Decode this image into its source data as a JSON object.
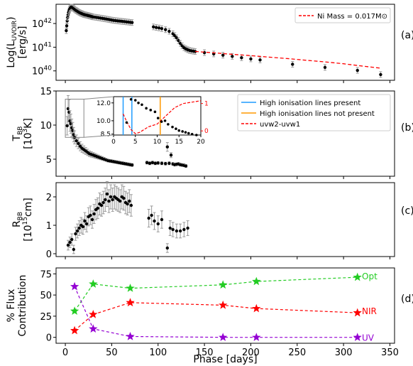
{
  "chart_data": [
    {
      "id": "a",
      "type": "scatter",
      "panel_label": "(a)",
      "ylabel": "Log(L_UVOIR) [erg/s]",
      "yscale": "log",
      "xlim": [
        -10,
        355
      ],
      "ylim": [
        4e+39,
        6.5e+42
      ],
      "yticks": [
        {
          "value": 1e+40,
          "label": "10^40"
        },
        {
          "value": 1e+41,
          "label": "10^41"
        },
        {
          "value": 1e+42,
          "label": "10^42"
        }
      ],
      "legend": {
        "position": "top-right",
        "entries": [
          {
            "label": "Ni Mass = 0.017M⊙",
            "style": "red-dashed"
          }
        ]
      },
      "series": [
        {
          "style": "black-points-errorbars",
          "x": [
            1,
            1.5,
            2,
            2.5,
            3,
            3.5,
            4,
            4.5,
            5,
            5.5,
            6,
            6.5,
            7,
            7.5,
            8,
            9,
            10,
            11,
            12,
            13,
            14,
            15,
            16,
            17,
            18,
            19,
            20,
            21,
            22,
            23,
            24,
            25,
            26,
            27,
            28,
            29,
            30,
            32,
            34,
            36,
            38,
            40,
            42,
            44,
            46,
            48,
            50,
            52,
            54,
            56,
            58,
            60,
            62,
            64,
            66,
            68,
            70,
            72,
            95,
            98,
            101,
            104,
            108,
            112,
            116,
            118,
            120,
            122,
            124,
            126,
            128,
            130,
            132,
            134,
            136,
            138,
            140,
            150,
            160,
            170,
            180,
            190,
            200,
            210,
            245,
            280,
            315,
            340
          ],
          "y": [
            5e+41,
            8e+41,
            1.3e+42,
            1.8e+42,
            2.3e+42,
            2.9e+42,
            3.4e+42,
            3.9e+42,
            4.3e+42,
            4.6e+42,
            4.8e+42,
            4.9e+42,
            4.9e+42,
            4.8e+42,
            4.6e+42,
            4.3e+42,
            4e+42,
            3.7e+42,
            3.5e+42,
            3.3e+42,
            3.1e+42,
            2.95e+42,
            2.8e+42,
            2.7e+42,
            2.6e+42,
            2.5e+42,
            2.4e+42,
            2.35e+42,
            2.3e+42,
            2.25e+42,
            2.2e+42,
            2.15e+42,
            2.1e+42,
            2.05e+42,
            2e+42,
            1.95e+42,
            1.9e+42,
            1.85e+42,
            1.8e+42,
            1.75e+42,
            1.7e+42,
            1.65e+42,
            1.6e+42,
            1.55e+42,
            1.5e+42,
            1.45e+42,
            1.4e+42,
            1.36e+42,
            1.33e+42,
            1.3e+42,
            1.27e+42,
            1.25e+42,
            1.22e+42,
            1.2e+42,
            1.17e+42,
            1.15e+42,
            1.12e+42,
            1.1e+42,
            7.2e+41,
            6.8e+41,
            6.5e+41,
            6.1e+41,
            5.5e+41,
            4.7e+41,
            3.7e+41,
            3.1e+41,
            2.5e+41,
            1.9e+41,
            1.45e+41,
            1.15e+41,
            9.5e+40,
            8.5e+40,
            7.8e+40,
            7.3e+40,
            7e+40,
            6.8e+40,
            6.6e+40,
            5.9e+40,
            5.2e+40,
            4.6e+40,
            4.1e+40,
            3.6e+40,
            3.2e+40,
            2.9e+40,
            1.9e+40,
            1.4e+40,
            1.05e+40,
            7e+39
          ]
        },
        {
          "style": "red-dashed",
          "name": "Ni Mass = 0.017M⊙",
          "x": [
            140,
            160,
            180,
            200,
            220,
            240,
            260,
            280,
            300,
            320,
            340
          ],
          "y": [
            6.6e+40,
            5.8e+40,
            5e+40,
            4.4e+40,
            3.8e+40,
            3.3e+40,
            2.8e+40,
            2.4e+40,
            2e+40,
            1.6e+40,
            1.3e+40
          ]
        }
      ]
    },
    {
      "id": "b",
      "type": "scatter",
      "panel_label": "(b)",
      "ylabel": "T_BB [10^3K]",
      "xlim": [
        -10,
        355
      ],
      "ylim": [
        2.5,
        15
      ],
      "yticks": [
        {
          "value": 5,
          "label": "5"
        },
        {
          "value": 10,
          "label": "10"
        },
        {
          "value": 15,
          "label": "15"
        }
      ],
      "legend": {
        "position": "top-right",
        "entries": [
          {
            "label": "High ionisation lines present",
            "style": "blue-solid"
          },
          {
            "label": "High ionisation lines not present",
            "style": "orange-solid"
          },
          {
            "label": "uvw2-uvw1",
            "style": "red-dashed"
          }
        ]
      },
      "series": [
        {
          "style": "black-points-errorbars",
          "x": [
            2,
            3,
            4,
            5,
            6,
            7,
            8,
            9,
            10,
            12,
            14,
            16,
            18,
            20,
            22,
            24,
            26,
            28,
            30,
            32,
            34,
            36,
            38,
            40,
            42,
            44,
            46,
            48,
            50,
            52,
            54,
            56,
            58,
            60,
            62,
            64,
            66,
            68,
            70,
            72,
            88,
            91,
            94,
            97,
            100,
            104,
            108,
            110,
            112,
            114,
            116,
            118,
            120,
            122,
            124,
            126,
            128,
            130
          ],
          "y": [
            9.9,
            12.4,
            11.9,
            10.6,
            10.2,
            9.6,
            9.2,
            8.6,
            8.2,
            7.7,
            7.3,
            6.9,
            6.6,
            6.4,
            6.2,
            6.0,
            5.8,
            5.7,
            5.6,
            5.5,
            5.4,
            5.3,
            5.2,
            5.1,
            5.0,
            4.9,
            4.8,
            4.75,
            4.7,
            4.65,
            4.6,
            4.55,
            4.5,
            4.45,
            4.4,
            4.35,
            4.3,
            4.25,
            4.2,
            4.15,
            4.5,
            4.4,
            4.5,
            4.4,
            4.45,
            4.4,
            4.35,
            6.8,
            4.4,
            5.6,
            4.3,
            4.2,
            4.25,
            4.3,
            4.2,
            4.15,
            4.1,
            4.0
          ]
        }
      ],
      "inset": {
        "xlim": [
          0,
          20
        ],
        "ylim": [
          8.4,
          12.7
        ],
        "xticks": [
          0,
          5,
          10,
          15,
          20
        ],
        "yticks_left": [
          8.5,
          10.0,
          12.0
        ],
        "yticks_right": [
          {
            "value": 0,
            "label": "0"
          },
          {
            "value": 1,
            "label": "1"
          }
        ],
        "vlines_blue": [
          2.2,
          4.2
        ],
        "vlines_orange": [
          10.7
        ],
        "points": {
          "x": [
            3,
            4,
            5,
            5.7,
            6.5,
            7.5,
            8.5,
            9.5,
            10.2,
            11,
            11.8,
            12.5,
            13.5,
            14.3,
            15,
            15.8,
            16.5,
            17.2,
            18,
            19
          ],
          "y": [
            9.8,
            12.4,
            12.3,
            12.0,
            11.8,
            11.4,
            11.2,
            11.0,
            10.3,
            9.9,
            10.0,
            9.6,
            9.3,
            9.1,
            8.9,
            8.8,
            8.7,
            8.6,
            8.5,
            8.4
          ]
        },
        "uv_color": {
          "x": [
            2.2,
            3,
            4,
            5,
            6,
            7,
            8,
            9,
            10,
            11,
            12,
            13,
            14,
            16,
            18,
            20
          ],
          "y": [
            0.62,
            0.35,
            0.05,
            -0.1,
            -0.05,
            0.05,
            0.15,
            0.2,
            0.25,
            0.4,
            0.55,
            0.7,
            0.85,
            1.0,
            1.05,
            1.1
          ]
        }
      }
    },
    {
      "id": "c",
      "type": "scatter",
      "panel_label": "(c)",
      "ylabel": "R_BB [10^15cm]",
      "xlim": [
        -10,
        355
      ],
      "ylim": [
        -0.1,
        2.5
      ],
      "yticks": [
        {
          "value": 0,
          "label": "0"
        },
        {
          "value": 1,
          "label": "1"
        },
        {
          "value": 2,
          "label": "2"
        }
      ],
      "series": [
        {
          "style": "black-points-errorbars",
          "x": [
            3,
            5,
            7,
            9,
            11,
            13,
            15,
            17,
            19,
            21,
            23,
            25,
            27,
            29,
            31,
            33,
            35,
            37,
            39,
            41,
            43,
            45,
            47,
            49,
            51,
            53,
            55,
            57,
            59,
            61,
            63,
            65,
            67,
            69,
            71,
            90,
            93,
            96,
            100,
            104,
            110,
            113,
            116,
            120,
            124,
            128,
            132
          ],
          "y": [
            0.3,
            0.4,
            0.5,
            0.15,
            0.7,
            0.8,
            0.9,
            1.0,
            0.95,
            1.15,
            1.05,
            1.3,
            1.35,
            1.2,
            1.4,
            1.55,
            1.6,
            1.75,
            1.7,
            1.8,
            1.9,
            2.1,
            1.85,
            2.0,
            1.9,
            2.0,
            1.95,
            1.9,
            1.85,
            2.0,
            1.95,
            1.8,
            1.75,
            1.85,
            1.7,
            1.25,
            1.35,
            1.15,
            1.05,
            1.2,
            0.2,
            0.9,
            0.85,
            0.8,
            0.8,
            0.85,
            0.9
          ]
        }
      ]
    },
    {
      "id": "d",
      "type": "line",
      "panel_label": "(d)",
      "ylabel": "% Flux Contribution",
      "xlabel": "Phase [days]",
      "xlim": [
        -10,
        355
      ],
      "ylim": [
        -7,
        82
      ],
      "yticks": [
        {
          "value": 0,
          "label": "0"
        },
        {
          "value": 25,
          "label": "25"
        },
        {
          "value": 50,
          "label": "50"
        },
        {
          "value": 75,
          "label": "75"
        }
      ],
      "xticks": [
        0,
        50,
        100,
        150,
        200,
        250,
        300,
        350
      ],
      "series": [
        {
          "name": "Opt",
          "color": "#22cc22",
          "x": [
            10,
            30,
            70,
            170,
            206,
            315
          ],
          "y": [
            31,
            63,
            58,
            62,
            66,
            71
          ]
        },
        {
          "name": "NIR",
          "color": "#ff0000",
          "x": [
            10,
            30,
            70,
            170,
            206,
            315
          ],
          "y": [
            8,
            27,
            41,
            38,
            34,
            29
          ]
        },
        {
          "name": "UV",
          "color": "#9400d3",
          "x": [
            10,
            30,
            70,
            170,
            206,
            315
          ],
          "y": [
            60,
            10,
            1,
            0,
            0,
            0
          ]
        }
      ]
    }
  ],
  "colors": {
    "ni": "#ff0000",
    "blue": "#1f9cff",
    "orange": "#ff9900",
    "opt": "#22cc22",
    "nir": "#ff0000",
    "uv": "#9400d3",
    "err": "#999999"
  }
}
